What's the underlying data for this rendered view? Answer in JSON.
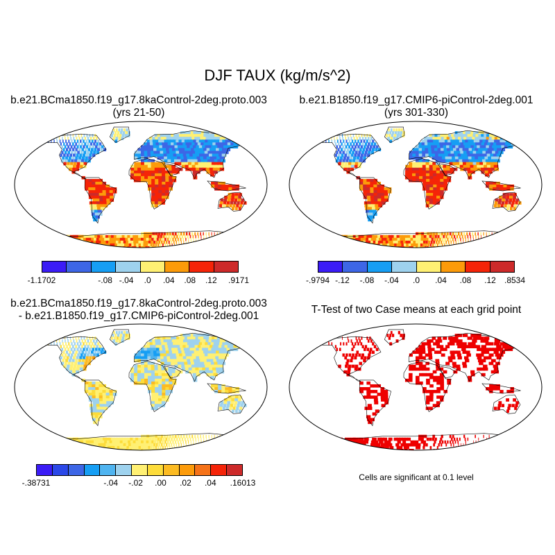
{
  "figure": {
    "title": "DJF TAUX (kg/m/s^2)"
  },
  "panels": [
    {
      "title_line1": "b.e21.BCma1850.f19_g17.8kaControl-2deg.proto.003",
      "title_line2": "(yrs 21-50)",
      "colorbar": {
        "colors": [
          "#3b1cf6",
          "#3d66e6",
          "#169ef4",
          "#9ed2ee",
          "#fff073",
          "#fc9b0a",
          "#f52408",
          "#cd2a2a"
        ],
        "tick_labels": [
          "-1.1702",
          "-.08",
          "-.04",
          ".0",
          ".04",
          ".08",
          ".12",
          ".9171"
        ]
      }
    },
    {
      "title_line1": "b.e21.B1850.f19_g17.CMIP6-piControl-2deg.001",
      "title_line2": "(yrs 301-330)",
      "colorbar": {
        "colors": [
          "#3b1cf6",
          "#3d66e6",
          "#169ef4",
          "#9ed2ee",
          "#fff073",
          "#fc9b0a",
          "#f52408",
          "#cd2a2a"
        ],
        "tick_labels": [
          "-.9794",
          "-.12",
          "-.08",
          "-.04",
          ".0",
          ".04",
          ".08",
          ".12",
          ".8534"
        ]
      }
    },
    {
      "title_line1": "b.e21.BCma1850.f19_g17.8kaControl-2deg.proto.003",
      "title_line2": "- b.e21.B1850.f19_g17.CMIP6-piControl-2deg.001",
      "colorbar": {
        "colors": [
          "#3b1cf6",
          "#2b48e8",
          "#3d66e6",
          "#169ef4",
          "#4fb4f0",
          "#9ed2ee",
          "#fff073",
          "#fddc3a",
          "#fcbb22",
          "#fc9b0a",
          "#f57218",
          "#f52408",
          "#cd2a2a"
        ],
        "tick_labels": [
          "-.38731",
          "-.04",
          "-.02",
          ".00",
          ".02",
          ".04",
          ".16013"
        ]
      }
    },
    {
      "title_line1": "T-Test of two Case means at each grid point",
      "note": "Cells are significant at 0.1 level",
      "significant_color": "#ee0000"
    }
  ]
}
